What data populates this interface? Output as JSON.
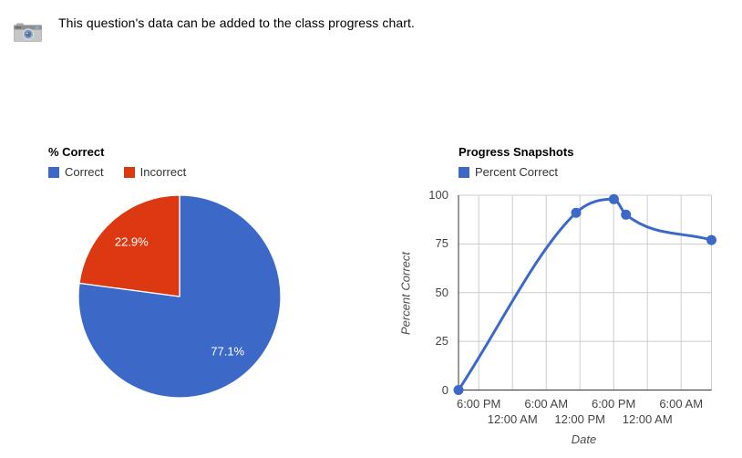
{
  "page": {
    "intro_text": "This question's data can be added to the class progress chart."
  },
  "icons": {
    "camera": "camera-icon"
  },
  "colors": {
    "series_blue": "#3C69C7",
    "series_red": "#DC3912",
    "grid_line": "#cccccc",
    "axis_line": "#333333",
    "tick_label": "#444444",
    "axis_title": "#4d4d4d",
    "slice_label": "#ffffff"
  },
  "chart_data": [
    {
      "type": "pie",
      "title": "% Correct",
      "labels": [
        "Correct",
        "Incorrect"
      ],
      "values": [
        77.1,
        22.9
      ],
      "slice_labels": [
        "77.1%",
        "22.9%"
      ],
      "colors": [
        "#3C69C7",
        "#DC3912"
      ],
      "legend_position": "top",
      "start_angle_deg": 0,
      "direction": "clockwise"
    },
    {
      "type": "line",
      "title": "Progress Snapshots",
      "xlabel": "Date",
      "ylabel": "Percent Correct",
      "ylim": [
        0,
        100
      ],
      "y_ticks": [
        0,
        25,
        50,
        75,
        100
      ],
      "x_ticks": [
        {
          "label": "6:00 PM",
          "xf": 0.08,
          "row": 1
        },
        {
          "label": "12:00 AM",
          "xf": 0.2133,
          "row": 2
        },
        {
          "label": "6:00 AM",
          "xf": 0.3467,
          "row": 1
        },
        {
          "label": "12:00 PM",
          "xf": 0.48,
          "row": 2
        },
        {
          "label": "6:00 PM",
          "xf": 0.6133,
          "row": 1
        },
        {
          "label": "12:00 AM",
          "xf": 0.7467,
          "row": 2
        },
        {
          "label": "6:00 AM",
          "xf": 0.88,
          "row": 1
        }
      ],
      "grid": true,
      "curve": "smooth",
      "legend_position": "top",
      "series": [
        {
          "name": "Percent Correct",
          "color": "#3C69C7",
          "points": [
            {
              "xf": 0.0,
              "y": 0
            },
            {
              "xf": 0.465,
              "y": 91
            },
            {
              "xf": 0.614,
              "y": 98
            },
            {
              "xf": 0.662,
              "y": 90
            },
            {
              "xf": 1.0,
              "y": 77
            }
          ]
        }
      ]
    }
  ]
}
